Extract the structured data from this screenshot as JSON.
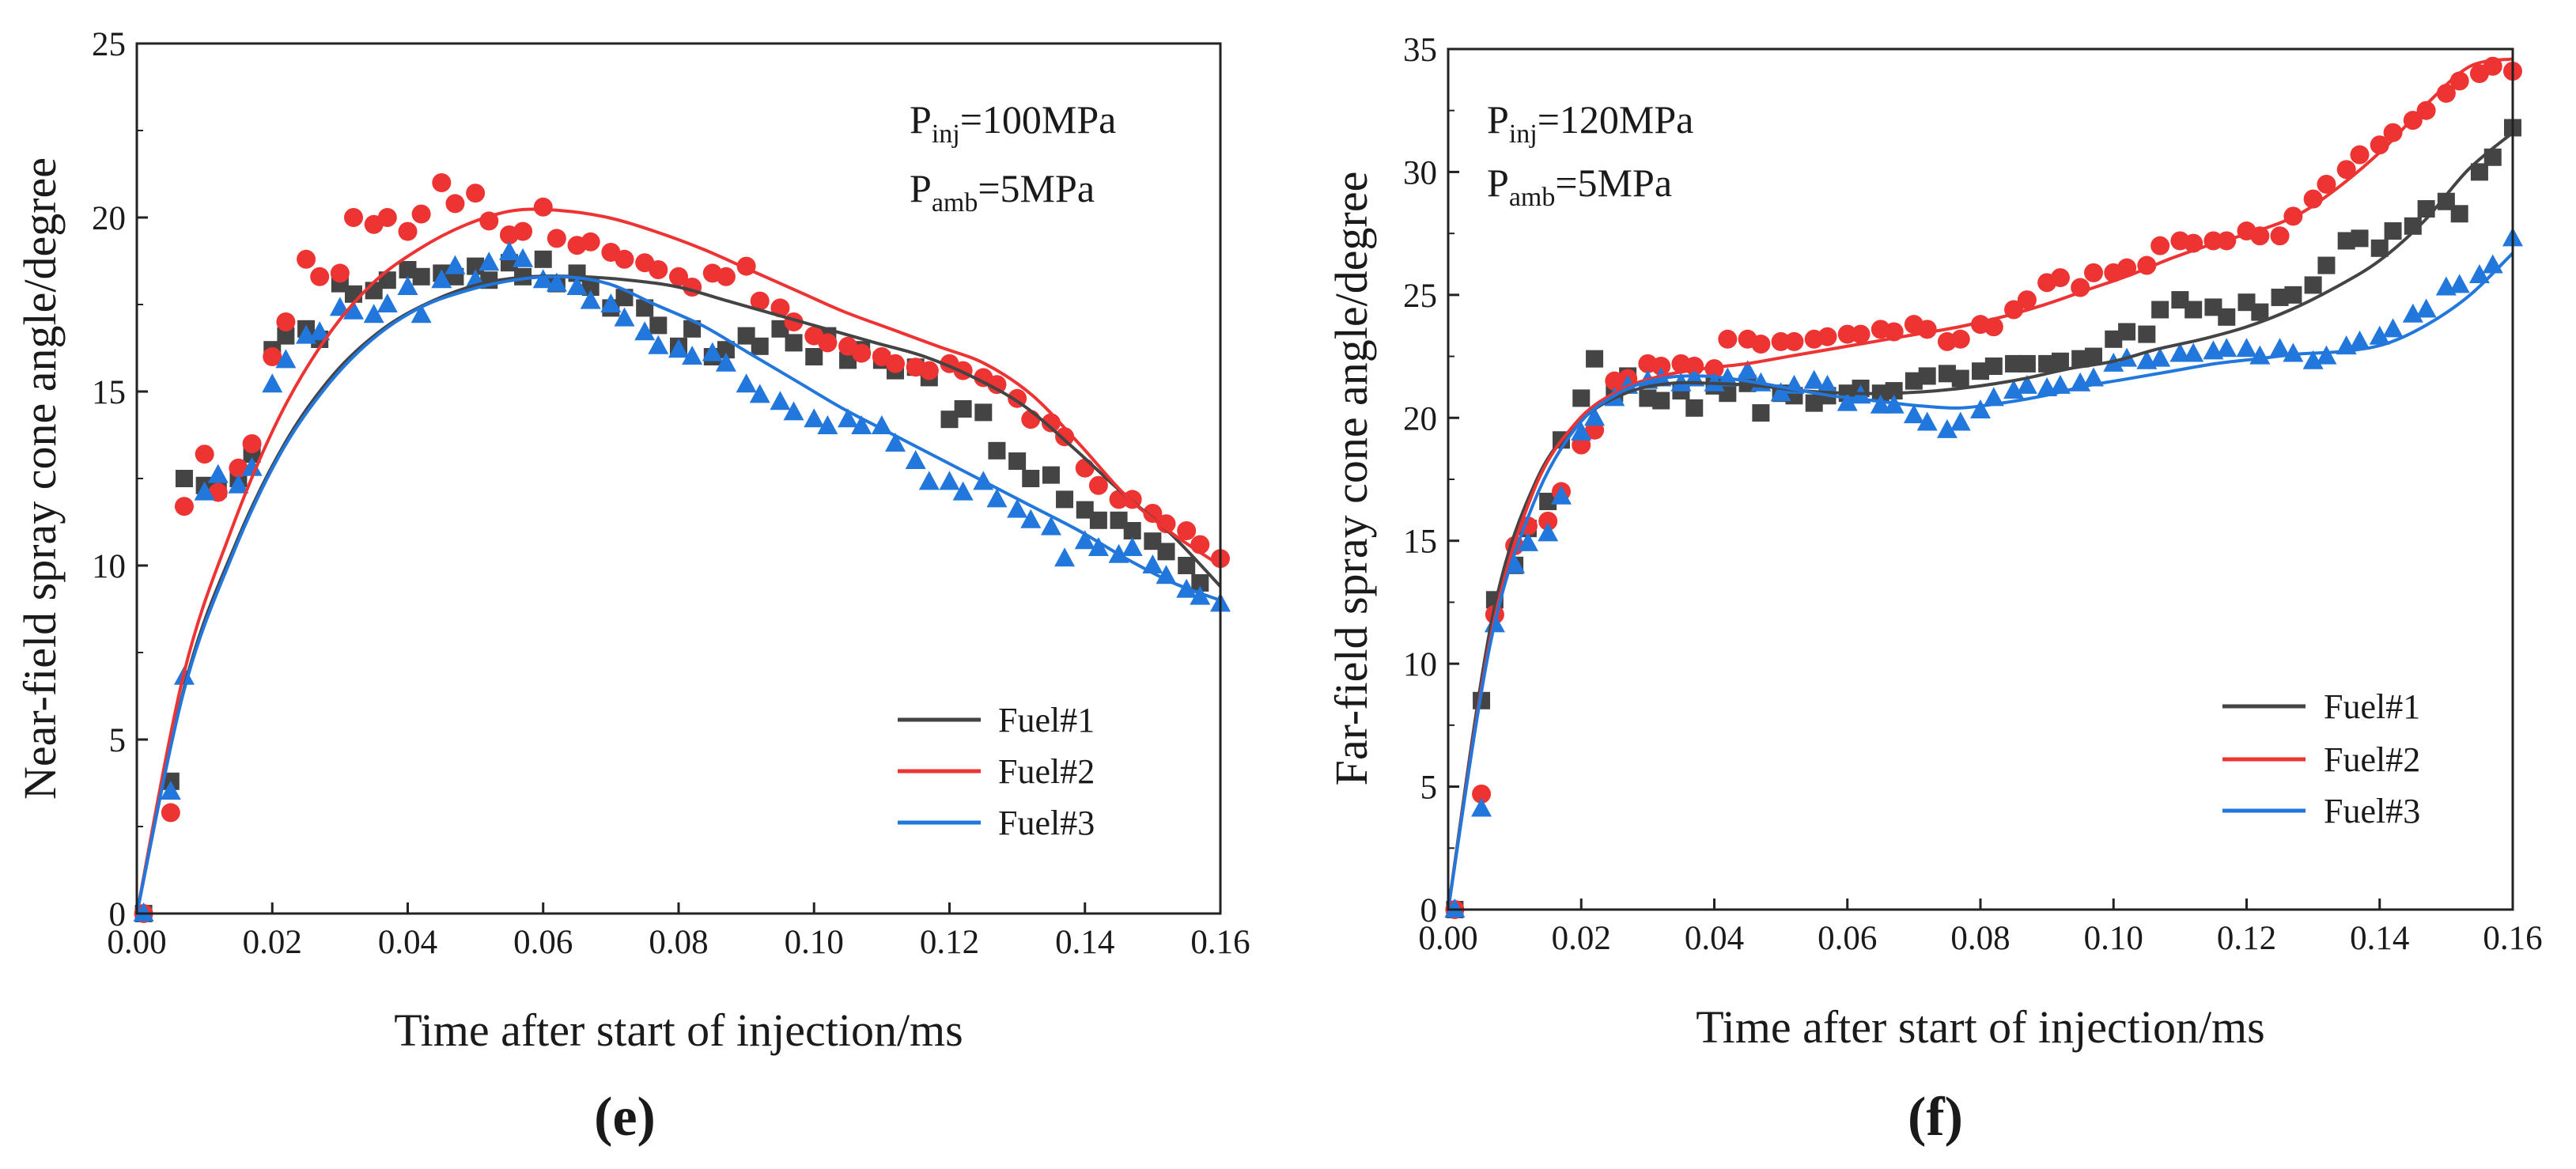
{
  "chart_data": [
    {
      "panel": "(e)",
      "type": "scatter",
      "xlabel": "Time after start of injection/ms",
      "ylabel": "Near-field spray cone angle/degree",
      "xlim": [
        0,
        0.16
      ],
      "ylim": [
        0,
        25
      ],
      "xticks": [
        "0.00",
        "0.02",
        "0.04",
        "0.06",
        "0.08",
        "0.10",
        "0.12",
        "0.14",
        "0.16"
      ],
      "yticks": [
        "0",
        "5",
        "10",
        "15",
        "20",
        "25"
      ],
      "annotations": [
        {
          "base": "P",
          "sub": "inj",
          "rest": "=100MPa"
        },
        {
          "base": "P",
          "sub": "amb",
          "rest": "=5MPa"
        }
      ],
      "legend_position": "bottom-right",
      "series": [
        {
          "name": "Fuel#1",
          "color": "#444444",
          "marker": "square",
          "x": [
            0.001,
            0.005,
            0.007,
            0.01,
            0.012,
            0.015,
            0.017,
            0.02,
            0.022,
            0.025,
            0.027,
            0.03,
            0.032,
            0.035,
            0.037,
            0.04,
            0.042,
            0.045,
            0.047,
            0.05,
            0.052,
            0.055,
            0.057,
            0.06,
            0.062,
            0.065,
            0.067,
            0.07,
            0.072,
            0.075,
            0.077,
            0.08,
            0.082,
            0.085,
            0.087,
            0.09,
            0.092,
            0.095,
            0.097,
            0.1,
            0.102,
            0.105,
            0.107,
            0.11,
            0.112,
            0.115,
            0.117,
            0.12,
            0.122,
            0.125,
            0.127,
            0.13,
            0.132,
            0.135,
            0.137,
            0.14,
            0.142,
            0.145,
            0.147,
            0.15,
            0.152,
            0.155,
            0.157
          ],
          "y": [
            0,
            3.8,
            12.5,
            12.3,
            12.2,
            12.5,
            13.2,
            16.2,
            16.6,
            16.8,
            16.5,
            18.1,
            17.8,
            17.9,
            18.2,
            18.5,
            18.3,
            18.4,
            18.3,
            18.6,
            18.2,
            18.7,
            18.3,
            18.8,
            18.1,
            18.4,
            18.0,
            17.4,
            17.7,
            17.4,
            16.9,
            16.3,
            16.8,
            16.0,
            16.2,
            16.6,
            16.3,
            16.8,
            16.4,
            16.0,
            16.6,
            15.9,
            16.2,
            15.9,
            15.6,
            15.7,
            15.4,
            14.2,
            14.5,
            14.4,
            13.3,
            13.0,
            12.5,
            12.6,
            11.9,
            11.6,
            11.3,
            11.3,
            11.0,
            10.7,
            10.4,
            10.0,
            9.5
          ],
          "fit_y": [
            0,
            6.7,
            10.6,
            13.5,
            15.5,
            16.8,
            17.6,
            18.1,
            18.3,
            18.3,
            18.2,
            18.0,
            17.6,
            17.2,
            16.8,
            16.4,
            16.0,
            15.4,
            14.6,
            13.4,
            12.1,
            10.9,
            9.4
          ]
        },
        {
          "name": "Fuel#2",
          "color": "#ee3333",
          "marker": "circle",
          "x": [
            0.001,
            0.005,
            0.007,
            0.01,
            0.012,
            0.015,
            0.017,
            0.02,
            0.022,
            0.025,
            0.027,
            0.03,
            0.032,
            0.035,
            0.037,
            0.04,
            0.042,
            0.045,
            0.047,
            0.05,
            0.052,
            0.055,
            0.057,
            0.06,
            0.062,
            0.065,
            0.067,
            0.07,
            0.072,
            0.075,
            0.077,
            0.08,
            0.082,
            0.085,
            0.087,
            0.09,
            0.092,
            0.095,
            0.097,
            0.1,
            0.102,
            0.105,
            0.107,
            0.11,
            0.112,
            0.115,
            0.117,
            0.12,
            0.122,
            0.125,
            0.127,
            0.13,
            0.132,
            0.135,
            0.137,
            0.14,
            0.142,
            0.145,
            0.147,
            0.15,
            0.152,
            0.155,
            0.157,
            0.16
          ],
          "y": [
            0,
            2.9,
            11.7,
            13.2,
            12.1,
            12.8,
            13.5,
            16.0,
            17.0,
            18.8,
            18.3,
            18.4,
            20.0,
            19.8,
            20.0,
            19.6,
            20.1,
            21.0,
            20.4,
            20.7,
            19.9,
            19.5,
            19.6,
            20.3,
            19.4,
            19.2,
            19.3,
            19.0,
            18.8,
            18.7,
            18.5,
            18.3,
            18.0,
            18.4,
            18.3,
            18.6,
            17.6,
            17.4,
            17.0,
            16.6,
            16.4,
            16.3,
            16.1,
            16.0,
            15.8,
            15.7,
            15.6,
            15.8,
            15.6,
            15.4,
            15.2,
            14.8,
            14.2,
            14.1,
            13.7,
            12.8,
            12.3,
            11.9,
            11.9,
            11.5,
            11.2,
            11.0,
            10.6,
            10.2
          ],
          "fit_y": [
            0,
            6.9,
            11.0,
            14.2,
            16.5,
            18.1,
            19.1,
            19.8,
            20.2,
            20.2,
            20.0,
            19.6,
            19.1,
            18.5,
            17.9,
            17.3,
            16.8,
            16.3,
            15.8,
            14.9,
            13.5,
            12.0,
            10.9,
            10.0
          ]
        },
        {
          "name": "Fuel#3",
          "color": "#2277dd",
          "marker": "triangle",
          "x": [
            0.001,
            0.005,
            0.007,
            0.01,
            0.012,
            0.015,
            0.017,
            0.02,
            0.022,
            0.025,
            0.027,
            0.03,
            0.032,
            0.035,
            0.037,
            0.04,
            0.042,
            0.045,
            0.047,
            0.05,
            0.052,
            0.055,
            0.057,
            0.06,
            0.062,
            0.065,
            0.067,
            0.07,
            0.072,
            0.075,
            0.077,
            0.08,
            0.082,
            0.085,
            0.087,
            0.09,
            0.092,
            0.095,
            0.097,
            0.1,
            0.102,
            0.105,
            0.107,
            0.11,
            0.112,
            0.115,
            0.117,
            0.12,
            0.122,
            0.125,
            0.127,
            0.13,
            0.132,
            0.135,
            0.137,
            0.14,
            0.142,
            0.145,
            0.147,
            0.15,
            0.152,
            0.155,
            0.157,
            0.16
          ],
          "y": [
            0,
            3.5,
            6.8,
            12.1,
            12.6,
            12.3,
            12.8,
            15.2,
            15.9,
            16.6,
            16.7,
            17.4,
            17.3,
            17.2,
            17.5,
            18.0,
            17.2,
            18.2,
            18.6,
            18.2,
            18.7,
            19.0,
            18.8,
            18.2,
            18.1,
            18.0,
            17.6,
            17.5,
            17.1,
            16.7,
            16.3,
            16.2,
            16.0,
            16.1,
            15.8,
            15.2,
            14.9,
            14.7,
            14.4,
            14.2,
            14.0,
            14.2,
            14.0,
            14.0,
            13.5,
            13.0,
            12.4,
            12.4,
            12.1,
            12.4,
            11.9,
            11.6,
            11.3,
            11.1,
            10.2,
            10.7,
            10.5,
            10.3,
            10.5,
            10.0,
            9.7,
            9.3,
            9.1,
            8.9
          ],
          "fit_y": [
            0,
            6.4,
            10.2,
            13.1,
            15.1,
            16.5,
            17.4,
            17.9,
            18.2,
            18.3,
            18.1,
            17.5,
            16.9,
            16.1,
            15.3,
            14.5,
            13.8,
            13.1,
            12.4,
            11.7,
            11.0,
            10.2,
            9.5,
            9.0
          ]
        }
      ]
    },
    {
      "panel": "(f)",
      "type": "scatter",
      "xlabel": "Time after start of injection/ms",
      "ylabel": "Far-field spray cone angle/degree",
      "xlim": [
        0,
        0.16
      ],
      "ylim": [
        0,
        35
      ],
      "xticks": [
        "0.00",
        "0.02",
        "0.04",
        "0.06",
        "0.08",
        "0.10",
        "0.12",
        "0.14",
        "0.16"
      ],
      "yticks": [
        "0",
        "5",
        "10",
        "15",
        "20",
        "25",
        "30",
        "35"
      ],
      "annotations": [
        {
          "base": "P",
          "sub": "inj",
          "rest": "=120MPa"
        },
        {
          "base": "P",
          "sub": "amb",
          "rest": "=5MPa"
        }
      ],
      "legend_position": "bottom-right",
      "series": [
        {
          "name": "Fuel#1",
          "color": "#444444",
          "marker": "square",
          "x": [
            0.001,
            0.005,
            0.007,
            0.01,
            0.012,
            0.015,
            0.017,
            0.02,
            0.022,
            0.025,
            0.027,
            0.03,
            0.032,
            0.035,
            0.037,
            0.04,
            0.042,
            0.045,
            0.047,
            0.05,
            0.052,
            0.055,
            0.057,
            0.06,
            0.062,
            0.065,
            0.067,
            0.07,
            0.072,
            0.075,
            0.077,
            0.08,
            0.082,
            0.085,
            0.087,
            0.09,
            0.092,
            0.095,
            0.097,
            0.1,
            0.102,
            0.105,
            0.107,
            0.11,
            0.112,
            0.115,
            0.117,
            0.12,
            0.122,
            0.125,
            0.127,
            0.13,
            0.132,
            0.135,
            0.137,
            0.14,
            0.142,
            0.145,
            0.147,
            0.15,
            0.152,
            0.155,
            0.157,
            0.16
          ],
          "y": [
            0,
            8.5,
            12.6,
            14.0,
            15.5,
            16.6,
            19.1,
            20.8,
            22.4,
            21.0,
            21.7,
            20.8,
            20.7,
            21.1,
            20.4,
            21.3,
            21.0,
            21.4,
            20.2,
            21.0,
            20.9,
            20.6,
            20.9,
            21.0,
            21.2,
            21.0,
            21.1,
            21.5,
            21.7,
            21.8,
            21.6,
            21.9,
            22.1,
            22.2,
            22.2,
            22.2,
            22.3,
            22.4,
            22.5,
            23.2,
            23.5,
            23.4,
            24.4,
            24.8,
            24.4,
            24.5,
            24.1,
            24.7,
            24.3,
            24.9,
            25.0,
            25.4,
            26.2,
            27.2,
            27.3,
            26.9,
            27.6,
            27.8,
            28.5,
            28.8,
            28.3,
            30.0,
            30.6,
            31.8
          ],
          "fit_y": [
            0,
            11.9,
            17.5,
            19.9,
            21.0,
            21.4,
            21.4,
            21.3,
            21.1,
            21.0,
            21.0,
            21.1,
            21.3,
            21.6,
            22.0,
            22.3,
            22.8,
            23.2,
            23.7,
            24.4,
            25.3,
            26.4,
            28.0,
            30.1,
            31.6
          ]
        },
        {
          "name": "Fuel#2",
          "color": "#ee3333",
          "marker": "circle",
          "x": [
            0.001,
            0.005,
            0.007,
            0.01,
            0.012,
            0.015,
            0.017,
            0.02,
            0.022,
            0.025,
            0.027,
            0.03,
            0.032,
            0.035,
            0.037,
            0.04,
            0.042,
            0.045,
            0.047,
            0.05,
            0.052,
            0.055,
            0.057,
            0.06,
            0.062,
            0.065,
            0.067,
            0.07,
            0.072,
            0.075,
            0.077,
            0.08,
            0.082,
            0.085,
            0.087,
            0.09,
            0.092,
            0.095,
            0.097,
            0.1,
            0.102,
            0.105,
            0.107,
            0.11,
            0.112,
            0.115,
            0.117,
            0.12,
            0.122,
            0.125,
            0.127,
            0.13,
            0.132,
            0.135,
            0.137,
            0.14,
            0.142,
            0.145,
            0.147,
            0.15,
            0.152,
            0.155,
            0.157,
            0.16
          ],
          "y": [
            0,
            4.7,
            12.0,
            14.8,
            15.6,
            15.8,
            17.0,
            18.9,
            19.5,
            21.5,
            21.6,
            22.2,
            22.1,
            22.2,
            22.1,
            22.0,
            23.2,
            23.2,
            23.0,
            23.1,
            23.1,
            23.2,
            23.3,
            23.4,
            23.4,
            23.6,
            23.5,
            23.8,
            23.6,
            23.1,
            23.2,
            23.8,
            23.7,
            24.4,
            24.8,
            25.5,
            25.7,
            25.3,
            25.9,
            25.9,
            26.1,
            26.2,
            27.0,
            27.2,
            27.1,
            27.2,
            27.2,
            27.6,
            27.4,
            27.4,
            28.2,
            28.9,
            29.5,
            30.1,
            30.7,
            31.1,
            31.6,
            32.1,
            32.5,
            33.2,
            33.7,
            34.0,
            34.3,
            34.1
          ],
          "fit_y": [
            0,
            11.1,
            17.0,
            19.8,
            21.1,
            21.7,
            22.0,
            22.2,
            22.5,
            22.8,
            23.1,
            23.4,
            23.7,
            24.1,
            24.6,
            25.2,
            25.8,
            26.5,
            27.1,
            27.6,
            28.3,
            29.5,
            31.0,
            32.8,
            34.3,
            34.6
          ]
        },
        {
          "name": "Fuel#3",
          "color": "#2277dd",
          "marker": "triangle",
          "x": [
            0.001,
            0.005,
            0.007,
            0.01,
            0.012,
            0.015,
            0.017,
            0.02,
            0.022,
            0.025,
            0.027,
            0.03,
            0.032,
            0.035,
            0.037,
            0.04,
            0.042,
            0.045,
            0.047,
            0.05,
            0.052,
            0.055,
            0.057,
            0.06,
            0.062,
            0.065,
            0.067,
            0.07,
            0.072,
            0.075,
            0.077,
            0.08,
            0.082,
            0.085,
            0.087,
            0.09,
            0.092,
            0.095,
            0.097,
            0.1,
            0.102,
            0.105,
            0.107,
            0.11,
            0.112,
            0.115,
            0.117,
            0.12,
            0.122,
            0.125,
            0.127,
            0.13,
            0.132,
            0.135,
            0.137,
            0.14,
            0.142,
            0.145,
            0.147,
            0.15,
            0.152,
            0.155,
            0.157,
            0.16
          ],
          "y": [
            0,
            4.1,
            11.6,
            14.0,
            14.9,
            15.3,
            16.8,
            19.4,
            20.0,
            20.8,
            21.3,
            21.5,
            21.6,
            21.4,
            21.6,
            21.4,
            21.6,
            21.9,
            21.4,
            21.0,
            21.3,
            21.5,
            21.3,
            20.6,
            20.9,
            20.5,
            20.5,
            20.1,
            19.8,
            19.5,
            19.8,
            20.3,
            20.8,
            21.1,
            21.3,
            21.2,
            21.3,
            21.4,
            21.6,
            22.2,
            22.4,
            22.3,
            22.4,
            22.6,
            22.6,
            22.7,
            22.8,
            22.8,
            22.5,
            22.8,
            22.6,
            22.3,
            22.5,
            22.9,
            23.1,
            23.3,
            23.6,
            24.2,
            24.4,
            25.3,
            25.4,
            25.8,
            26.2,
            27.3
          ],
          "fit_y": [
            0,
            10.9,
            16.5,
            19.6,
            21.0,
            21.6,
            21.7,
            21.5,
            21.2,
            20.9,
            20.7,
            20.5,
            20.4,
            20.6,
            20.9,
            21.3,
            21.6,
            21.9,
            22.2,
            22.4,
            22.6,
            22.7,
            23.0,
            23.8,
            25.0,
            26.7
          ]
        }
      ]
    }
  ]
}
